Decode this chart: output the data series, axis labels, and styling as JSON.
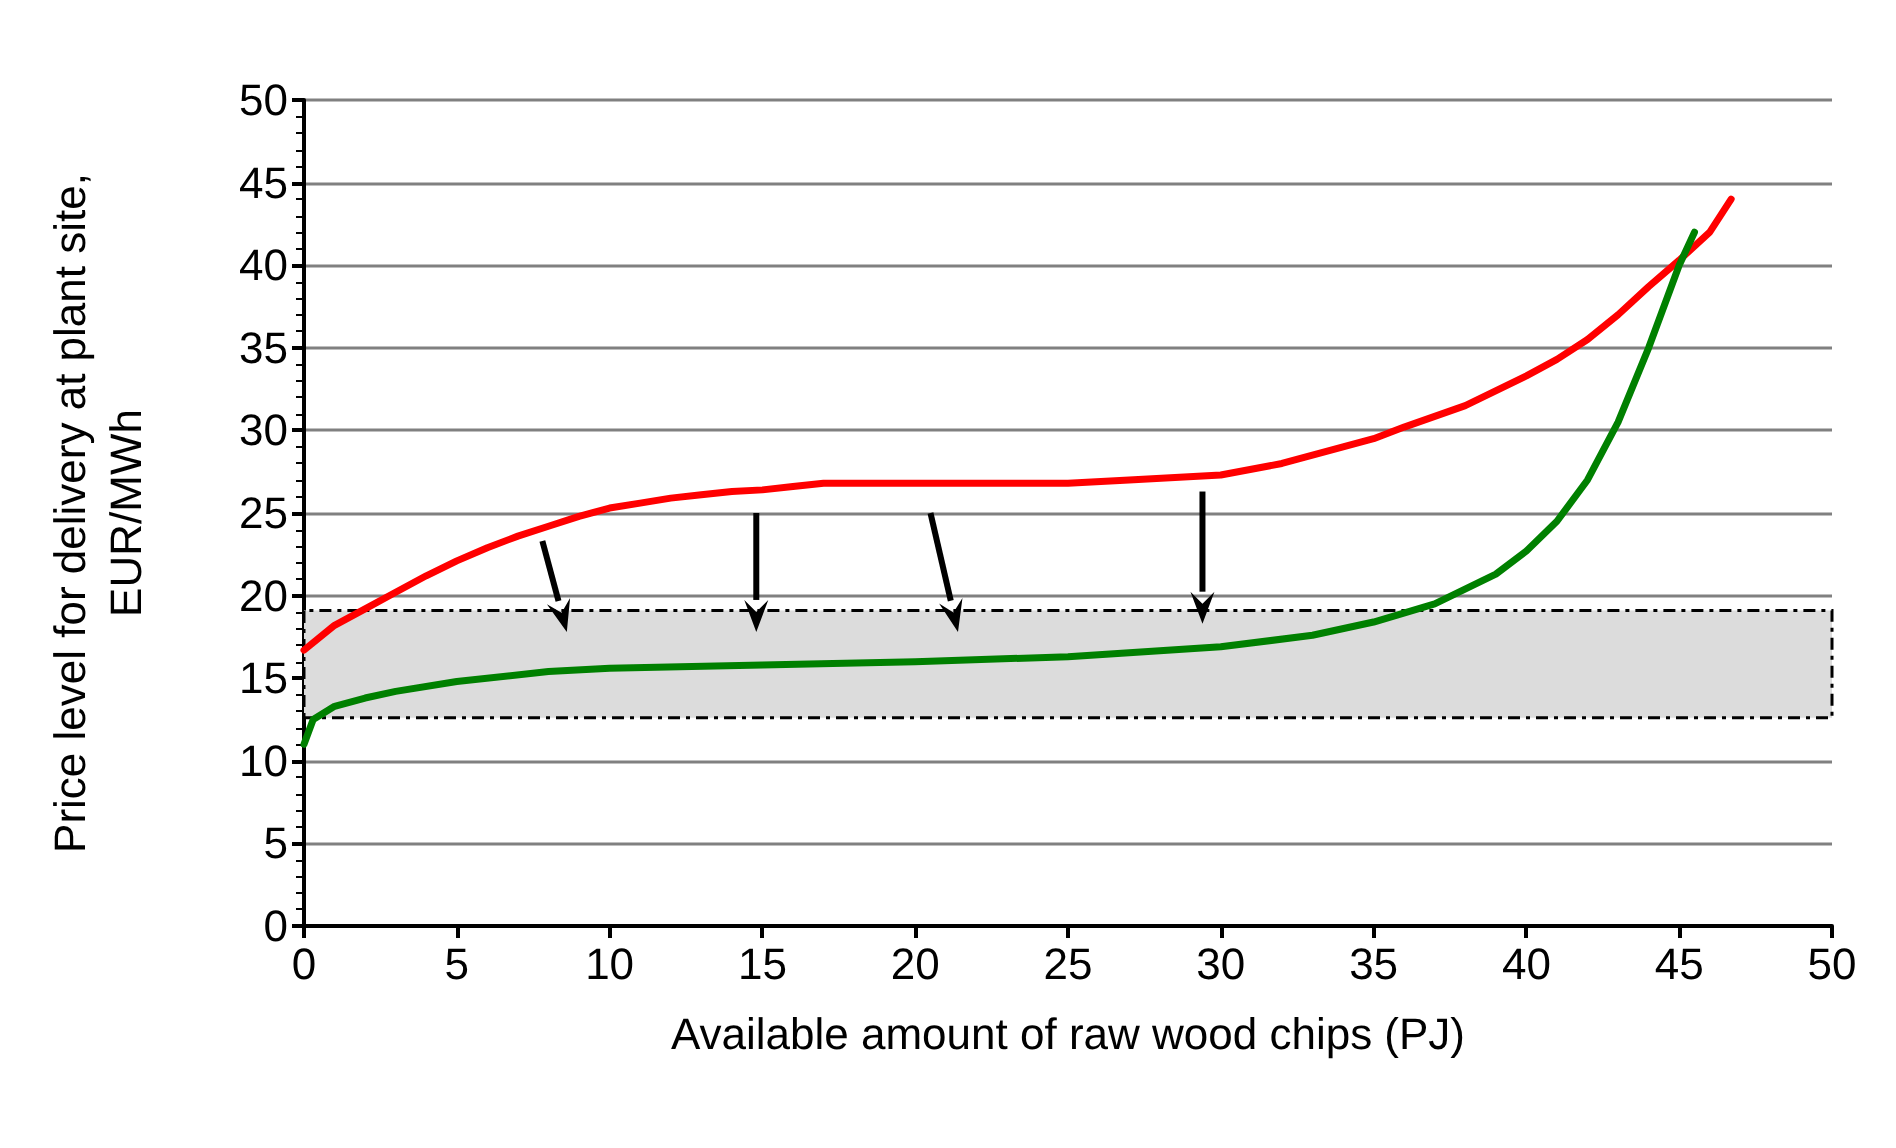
{
  "chart_data": {
    "type": "line",
    "xlabel": "Available amount of raw wood chips (PJ)",
    "ylabel": "Price level for delivery at plant site,\nEUR/MWh",
    "series": [
      {
        "color": "#ff0000",
        "x": [
          0,
          1,
          2,
          3,
          4,
          5,
          6,
          7,
          8,
          9,
          10,
          11,
          12,
          13,
          14,
          15,
          16,
          17,
          20,
          25,
          27,
          30,
          32,
          34,
          35,
          36,
          38,
          40,
          41,
          42,
          43,
          44,
          45,
          46,
          46.7
        ],
        "values": [
          16.7,
          18.2,
          19.2,
          20.2,
          21.2,
          22.1,
          22.9,
          23.6,
          24.2,
          24.8,
          25.3,
          25.6,
          25.9,
          26.1,
          26.3,
          26.4,
          26.6,
          26.8,
          26.8,
          26.8,
          27,
          27.3,
          28,
          29,
          29.5,
          30.2,
          31.5,
          33.3,
          34.3,
          35.5,
          37,
          38.7,
          40.3,
          42,
          44
        ]
      },
      {
        "color": "#008000",
        "x": [
          0,
          0.3,
          1,
          2,
          3,
          5,
          8,
          10,
          15,
          20,
          25,
          30,
          33,
          35,
          37,
          39,
          40,
          41,
          42,
          43,
          44,
          45,
          45.5
        ],
        "values": [
          11,
          12.5,
          13.3,
          13.8,
          14.2,
          14.8,
          15.4,
          15.6,
          15.8,
          16,
          16.3,
          16.9,
          17.6,
          18.4,
          19.5,
          21.3,
          22.7,
          24.5,
          27,
          30.5,
          35,
          40,
          42
        ]
      }
    ],
    "xlim": [
      0,
      50
    ],
    "xticks": [
      0,
      5,
      10,
      15,
      20,
      25,
      30,
      35,
      40,
      45,
      50
    ],
    "ylim": [
      0,
      50
    ],
    "yticks": [
      0,
      5,
      10,
      15,
      20,
      25,
      30,
      35,
      40,
      45,
      50
    ],
    "grid": "y",
    "marker": "none",
    "line_style": "solid",
    "bands": [
      {
        "axis": "y",
        "from": 12.6,
        "to": 19.1,
        "color": "#dcdcdc"
      }
    ]
  }
}
